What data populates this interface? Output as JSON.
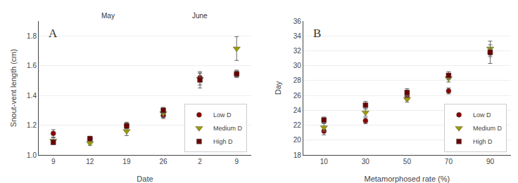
{
  "chart_data": [
    {
      "type": "scatter",
      "title": "A",
      "xlabel": "Date",
      "ylabel": "Snout-vent length (cm)",
      "categories": [
        "9",
        "12",
        "19",
        "26",
        "2",
        "9"
      ],
      "series": [
        {
          "name": "Low D",
          "color": "#8B0000",
          "marker": "circle",
          "values": [
            1.145,
            1.11,
            1.2,
            1.265,
            1.52,
            1.545
          ],
          "errors": [
            0.025,
            0.015,
            0.02,
            0.02,
            0.03,
            0.02
          ]
        },
        {
          "name": "Medium D",
          "color": "#9B9B00",
          "marker": "triangle-down",
          "values": [
            1.095,
            1.08,
            1.16,
            1.28,
            1.51,
            1.715
          ],
          "errors": [
            0.02,
            0.015,
            0.03,
            0.025,
            0.04,
            0.08
          ]
        },
        {
          "name": "High D",
          "color": "#6B0000",
          "marker": "square",
          "values": [
            1.085,
            1.11,
            1.195,
            1.3,
            1.505,
            1.545
          ],
          "errors": [
            0.015,
            0.015,
            0.018,
            0.02,
            0.055,
            0.025
          ]
        }
      ],
      "ylim": [
        1.0,
        1.9
      ],
      "yticks": [
        {
          "value": 1.0,
          "label": "1.0"
        },
        1.2,
        1.4,
        1.6,
        1.8
      ],
      "grid": "y",
      "legend": "lower right",
      "annotations": [
        {
          "text": "May",
          "x": 1.5
        },
        {
          "text": "June",
          "x": 4
        }
      ]
    },
    {
      "type": "scatter",
      "title": "B",
      "xlabel": "Metamorphosed rate (%)",
      "ylabel": "Day",
      "x": [
        10,
        30,
        50,
        70,
        90
      ],
      "series": [
        {
          "name": "Low D",
          "color": "#8B0000",
          "marker": "circle",
          "values": [
            21.2,
            22.6,
            25.9,
            26.6,
            31.7
          ],
          "errors": [
            0.5,
            0.4,
            0.5,
            0.4,
            0.5
          ]
        },
        {
          "name": "Medium D",
          "color": "#9B9B00",
          "marker": "triangle-down",
          "values": [
            21.7,
            23.7,
            25.5,
            28.3,
            32.3
          ],
          "errors": [
            0.5,
            0.5,
            0.4,
            0.5,
            0.5
          ]
        },
        {
          "name": "High D",
          "color": "#6B0000",
          "marker": "square",
          "values": [
            22.7,
            24.7,
            26.4,
            28.7,
            31.8
          ],
          "errors": [
            0.4,
            0.5,
            0.5,
            0.5,
            1.5
          ]
        }
      ],
      "xlim": [
        0,
        100
      ],
      "xticks": [
        10,
        30,
        50,
        70,
        90
      ],
      "ylim": [
        18,
        36
      ],
      "yticks": [
        18,
        20,
        22,
        24,
        26,
        28,
        30,
        32,
        34,
        36
      ],
      "grid": "y",
      "legend": "lower right"
    }
  ]
}
